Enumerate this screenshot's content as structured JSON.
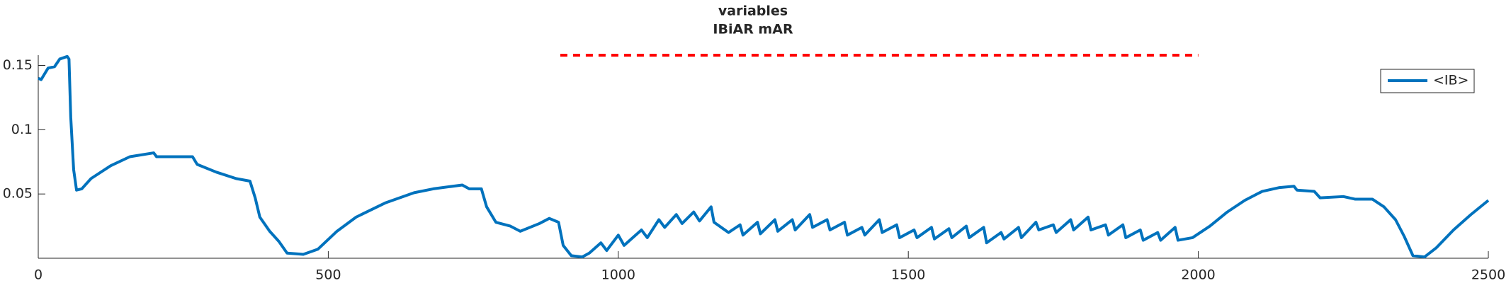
{
  "chart_data": {
    "type": "line",
    "title": [
      "variables",
      "IBiAR mAR"
    ],
    "xlim": [
      0,
      2500
    ],
    "xticks": [
      0,
      500,
      1000,
      1500,
      2000,
      2500
    ],
    "ylim": [
      0,
      0.158
    ],
    "yticks": [
      0.05,
      0.1,
      0.15
    ],
    "legend": "upper right",
    "series": [
      {
        "name": "<IB>",
        "color": "#0072bd",
        "style": "solid",
        "x": [
          0,
          5,
          17,
          28,
          37,
          50,
          53,
          56,
          61,
          66,
          75,
          91,
          125,
          158,
          199,
          204,
          266,
          274,
          307,
          341,
          365,
          374,
          382,
          399,
          415,
          429,
          457,
          482,
          515,
          548,
          598,
          648,
          681,
          731,
          743,
          764,
          773,
          789,
          814,
          831,
          864,
          881,
          897,
          905,
          919,
          938,
          950,
          970,
          980,
          1000,
          1010,
          1040,
          1050,
          1070,
          1080,
          1100,
          1110,
          1130,
          1140,
          1160,
          1165,
          1190,
          1210,
          1215,
          1240,
          1245,
          1270,
          1275,
          1300,
          1305,
          1330,
          1335,
          1360,
          1365,
          1390,
          1395,
          1420,
          1425,
          1450,
          1455,
          1480,
          1485,
          1510,
          1515,
          1540,
          1545,
          1570,
          1575,
          1600,
          1605,
          1630,
          1635,
          1660,
          1665,
          1690,
          1695,
          1720,
          1725,
          1750,
          1755,
          1780,
          1785,
          1810,
          1815,
          1840,
          1845,
          1870,
          1875,
          1900,
          1905,
          1930,
          1935,
          1960,
          1965,
          1990,
          2020,
          2050,
          2080,
          2110,
          2140,
          2165,
          2170,
          2200,
          2210,
          2250,
          2270,
          2300,
          2320,
          2340,
          2355,
          2370,
          2390,
          2410,
          2440,
          2470,
          2500
        ],
        "values": [
          0.14,
          0.139,
          0.148,
          0.149,
          0.155,
          0.157,
          0.155,
          0.11,
          0.069,
          0.053,
          0.054,
          0.062,
          0.072,
          0.079,
          0.082,
          0.079,
          0.079,
          0.073,
          0.067,
          0.062,
          0.06,
          0.047,
          0.032,
          0.021,
          0.013,
          0.004,
          0.003,
          0.007,
          0.021,
          0.032,
          0.043,
          0.051,
          0.054,
          0.057,
          0.054,
          0.054,
          0.04,
          0.028,
          0.025,
          0.021,
          0.027,
          0.031,
          0.028,
          0.01,
          0.002,
          0.001,
          0.004,
          0.012,
          0.006,
          0.018,
          0.01,
          0.022,
          0.016,
          0.03,
          0.024,
          0.034,
          0.027,
          0.036,
          0.029,
          0.04,
          0.028,
          0.02,
          0.026,
          0.018,
          0.028,
          0.019,
          0.03,
          0.021,
          0.03,
          0.022,
          0.034,
          0.024,
          0.03,
          0.022,
          0.028,
          0.018,
          0.024,
          0.018,
          0.03,
          0.02,
          0.026,
          0.016,
          0.022,
          0.016,
          0.024,
          0.015,
          0.023,
          0.016,
          0.025,
          0.016,
          0.024,
          0.012,
          0.02,
          0.015,
          0.024,
          0.016,
          0.028,
          0.022,
          0.026,
          0.02,
          0.03,
          0.022,
          0.032,
          0.022,
          0.026,
          0.018,
          0.026,
          0.016,
          0.022,
          0.014,
          0.02,
          0.014,
          0.024,
          0.014,
          0.016,
          0.025,
          0.036,
          0.045,
          0.052,
          0.055,
          0.056,
          0.053,
          0.052,
          0.047,
          0.048,
          0.046,
          0.046,
          0.04,
          0.03,
          0.017,
          0.002,
          0.001,
          0.008,
          0.022,
          0.034,
          0.045
        ]
      },
      {
        "color": "#ff0000",
        "style": "dashed",
        "x": [
          900,
          2000
        ],
        "values": [
          0.158,
          0.158
        ]
      }
    ]
  }
}
